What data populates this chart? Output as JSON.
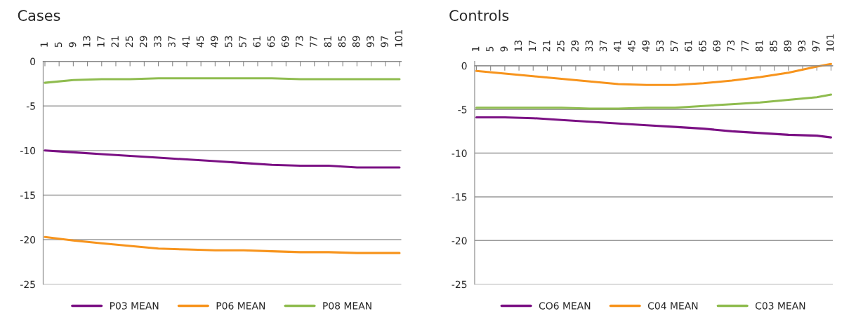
{
  "chart_data": [
    {
      "type": "line",
      "title": "Cases",
      "x": [
        1,
        9,
        17,
        25,
        33,
        41,
        49,
        57,
        65,
        73,
        81,
        89,
        97,
        101
      ],
      "series": [
        {
          "name": "P03 MEAN",
          "color": "#7b1184",
          "values": [
            -10.0,
            -10.2,
            -10.4,
            -10.6,
            -10.8,
            -11.0,
            -11.2,
            -11.4,
            -11.6,
            -11.7,
            -11.7,
            -11.9,
            -11.9,
            -11.9
          ]
        },
        {
          "name": "P06 MEAN",
          "color": "#f7941d",
          "values": [
            -19.7,
            -20.1,
            -20.4,
            -20.7,
            -21.0,
            -21.1,
            -21.2,
            -21.2,
            -21.3,
            -21.4,
            -21.4,
            -21.5,
            -21.5,
            -21.5
          ]
        },
        {
          "name": "P08 MEAN",
          "color": "#8fbc4f",
          "values": [
            -2.4,
            -2.1,
            -2.0,
            -2.0,
            -1.9,
            -1.9,
            -1.9,
            -1.9,
            -1.9,
            -2.0,
            -2.0,
            -2.0,
            -2.0,
            -2.0
          ]
        }
      ],
      "xlim": [
        0.5,
        101.5
      ],
      "xticks": [
        1,
        5,
        9,
        13,
        17,
        21,
        25,
        29,
        33,
        37,
        41,
        45,
        49,
        53,
        57,
        61,
        65,
        69,
        73,
        77,
        81,
        85,
        89,
        93,
        97,
        101
      ],
      "ylim": [
        -25,
        0
      ],
      "yticks": [
        -25,
        -20,
        -15,
        -10,
        -5,
        0
      ],
      "grid": "y",
      "legend": "bottom",
      "marker": "none",
      "line_style": "solid"
    },
    {
      "type": "line",
      "title": "Controls",
      "x": [
        1,
        9,
        17,
        25,
        33,
        41,
        49,
        57,
        65,
        73,
        81,
        89,
        97,
        101
      ],
      "series": [
        {
          "name": "CO6 MEAN",
          "color": "#7b1184",
          "values": [
            -5.9,
            -5.9,
            -6.0,
            -6.2,
            -6.4,
            -6.6,
            -6.8,
            -7.0,
            -7.2,
            -7.5,
            -7.7,
            -7.9,
            -8.0,
            -8.2
          ]
        },
        {
          "name": "C04 MEAN",
          "color": "#f7941d",
          "values": [
            -0.6,
            -0.9,
            -1.2,
            -1.5,
            -1.8,
            -2.1,
            -2.2,
            -2.2,
            -2.0,
            -1.7,
            -1.3,
            -0.8,
            -0.1,
            0.2
          ]
        },
        {
          "name": "C03 MEAN",
          "color": "#8fbc4f",
          "values": [
            -4.8,
            -4.8,
            -4.8,
            -4.8,
            -4.9,
            -4.9,
            -4.8,
            -4.8,
            -4.6,
            -4.4,
            -4.2,
            -3.9,
            -3.6,
            -3.3
          ]
        }
      ],
      "xlim": [
        0.5,
        101.5
      ],
      "xticks": [
        1,
        5,
        9,
        13,
        17,
        21,
        25,
        29,
        33,
        37,
        41,
        45,
        49,
        53,
        57,
        61,
        65,
        69,
        73,
        77,
        81,
        85,
        89,
        93,
        97,
        101
      ],
      "ylim": [
        -25,
        0.5
      ],
      "yticks": [
        -25,
        -20,
        -15,
        -10,
        -5,
        0
      ],
      "grid": "y",
      "legend": "bottom",
      "marker": "none",
      "line_style": "solid"
    }
  ]
}
